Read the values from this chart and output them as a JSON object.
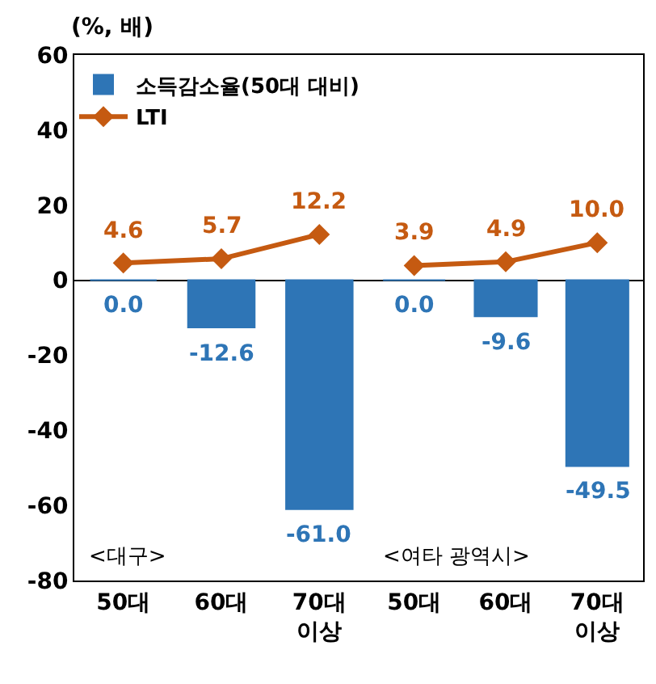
{
  "chart_data": [
    {
      "type": "bar",
      "ylabel": "(%, 배)",
      "categories": [
        "50대",
        "60대",
        "70대\n이상"
      ],
      "ylim": [
        -80,
        60
      ],
      "yticks": [
        -80,
        -60,
        -40,
        -20,
        0,
        20,
        40,
        60
      ],
      "legend": "top left",
      "marker": "diamond",
      "annotations": [
        "<대구>"
      ],
      "series": [
        {
          "name": "소득감소율(50대 대비)",
          "color": "#2e75b6",
          "values": [
            0.0,
            -12.6,
            -61.0
          ],
          "value_labels": [
            "0.0",
            "-12.6",
            "-61.0"
          ]
        },
        {
          "name": "LTI",
          "type": "line",
          "color": "#c55a11",
          "values": [
            4.6,
            5.7,
            12.2
          ],
          "value_labels": [
            "4.6",
            "5.7",
            "12.2"
          ]
        }
      ]
    },
    {
      "type": "bar",
      "categories": [
        "50대",
        "60대",
        "70대\n이상"
      ],
      "ylim": [
        -80,
        60
      ],
      "yticks": [
        -80,
        -60,
        -40,
        -20,
        0,
        20,
        40,
        60
      ],
      "tick_labels": "x",
      "marker": "diamond",
      "annotations": [
        "<여타 광역시>"
      ],
      "series": [
        {
          "color": "#2e75b6",
          "values": [
            0.0,
            -9.6,
            -49.5
          ],
          "value_labels": [
            "0.0",
            "-9.6",
            "-49.5"
          ]
        },
        {
          "type": "line",
          "color": "#c55a11",
          "values": [
            3.9,
            4.9,
            10.0
          ],
          "value_labels": [
            "3.9",
            "4.9",
            "10.0"
          ]
        }
      ]
    }
  ]
}
